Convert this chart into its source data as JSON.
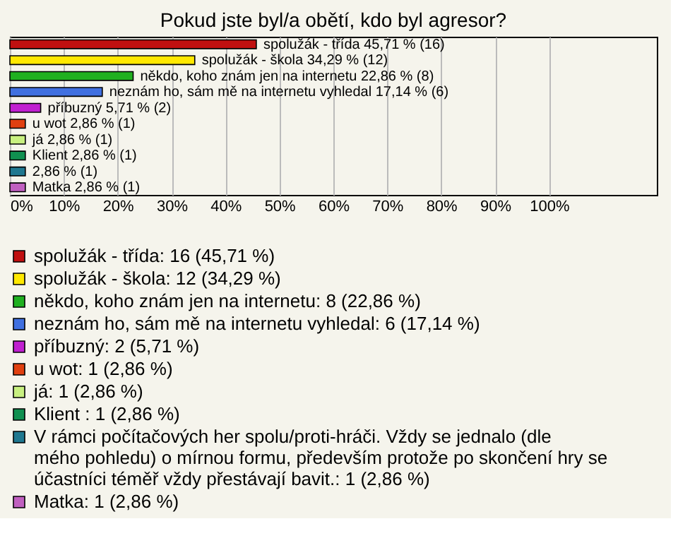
{
  "chart_data": {
    "type": "bar",
    "orientation": "horizontal",
    "title": "Pokud jste byl/a obětí, kdo byl agresor?",
    "categories": [
      null,
      null,
      null,
      null,
      null,
      null,
      null,
      null,
      null,
      null
    ],
    "series": [
      {
        "name": "spolužák - třída: 16 (45,71 %)",
        "color": "#c01010",
        "values": [
          45.71,
          null,
          null,
          null,
          null,
          null,
          null,
          null,
          null,
          null
        ],
        "value_labels": [
          "spolužák - třída 45,71 % (16)",
          null,
          null,
          null,
          null,
          null,
          null,
          null,
          null,
          null
        ]
      },
      {
        "name": "spolužák - škola: 12 (34,29 %)",
        "color": "#ffe800",
        "values": [
          null,
          34.29,
          null,
          null,
          null,
          null,
          null,
          null,
          null,
          null
        ],
        "value_labels": [
          null,
          "spolužák - škola 34,29 % (12)",
          null,
          null,
          null,
          null,
          null,
          null,
          null,
          null
        ]
      },
      {
        "name": "někdo, koho znám jen na internetu: 8 (22,86 %)",
        "color": "#20b020",
        "values": [
          null,
          null,
          22.86,
          null,
          null,
          null,
          null,
          null,
          null,
          null
        ],
        "value_labels": [
          null,
          null,
          "někdo, koho znám jen na internetu 22,86 % (8)",
          null,
          null,
          null,
          null,
          null,
          null,
          null
        ]
      },
      {
        "name": "neznám ho, sám mě na internetu vyhledal: 6 (17,14 %)",
        "color": "#4070e0",
        "values": [
          null,
          null,
          null,
          17.14,
          null,
          null,
          null,
          null,
          null,
          null
        ],
        "value_labels": [
          null,
          null,
          null,
          "neznám ho, sám mě na internetu vyhledal 17,14 % (6)",
          null,
          null,
          null,
          null,
          null,
          null
        ]
      },
      {
        "name": "příbuzný: 2 (5,71 %)",
        "color": "#c020d0",
        "values": [
          null,
          null,
          null,
          null,
          5.71,
          null,
          null,
          null,
          null,
          null
        ],
        "value_labels": [
          null,
          null,
          null,
          null,
          "příbuzný 5,71 % (2)",
          null,
          null,
          null,
          null,
          null
        ]
      },
      {
        "name": "u wot: 1 (2,86 %)",
        "color": "#e04010",
        "values": [
          null,
          null,
          null,
          null,
          null,
          2.86,
          null,
          null,
          null,
          null
        ],
        "value_labels": [
          null,
          null,
          null,
          null,
          null,
          "u wot 2,86 % (1)",
          null,
          null,
          null,
          null
        ]
      },
      {
        "name": "já: 1 (2,86 %)",
        "color": "#c8f080",
        "values": [
          null,
          null,
          null,
          null,
          null,
          null,
          2.86,
          null,
          null,
          null
        ],
        "value_labels": [
          null,
          null,
          null,
          null,
          null,
          null,
          "já 2,86 % (1)",
          null,
          null,
          null
        ]
      },
      {
        "name": "Klient : 1 (2,86 %)",
        "color": "#109050",
        "values": [
          null,
          null,
          null,
          null,
          null,
          null,
          null,
          2.86,
          null,
          null
        ],
        "value_labels": [
          null,
          null,
          null,
          null,
          null,
          null,
          null,
          "Klient  2,86 % (1)",
          null,
          null
        ]
      },
      {
        "name": "V rámci počítačových her spolu/proti-hráči. Vždy se jednalo (dle mého pohledu) o mírnou formu, především protože po skončení hry se účastníci téměř vždy přestávají bavit.: 1 (2,86 %)",
        "color": "#207890",
        "values": [
          null,
          null,
          null,
          null,
          null,
          null,
          null,
          null,
          2.86,
          null
        ],
        "value_labels": [
          null,
          null,
          null,
          null,
          null,
          null,
          null,
          null,
          "2,86 % (1)",
          null
        ]
      },
      {
        "name": "Matka: 1 (2,86 %)",
        "color": "#c060c0",
        "values": [
          null,
          null,
          null,
          null,
          null,
          null,
          null,
          null,
          null,
          2.86
        ],
        "value_labels": [
          null,
          null,
          null,
          null,
          null,
          null,
          null,
          null,
          null,
          "Matka 2,86 % (1)"
        ]
      }
    ],
    "xlim": [
      0,
      120
    ],
    "xticks": [
      {
        "value": 0,
        "label": "0%"
      },
      {
        "value": 10,
        "label": "10%"
      },
      {
        "value": 20,
        "label": "20%"
      },
      {
        "value": 30,
        "label": "30%"
      },
      {
        "value": 40,
        "label": "40%"
      },
      {
        "value": 50,
        "label": "50%"
      },
      {
        "value": 60,
        "label": "60%"
      },
      {
        "value": 70,
        "label": "70%"
      },
      {
        "value": 80,
        "label": "80%"
      },
      {
        "value": 90,
        "label": "90%"
      },
      {
        "value": 100,
        "label": "100%"
      }
    ],
    "grid": "x",
    "tick_labels": "x",
    "legend": "bottom"
  }
}
